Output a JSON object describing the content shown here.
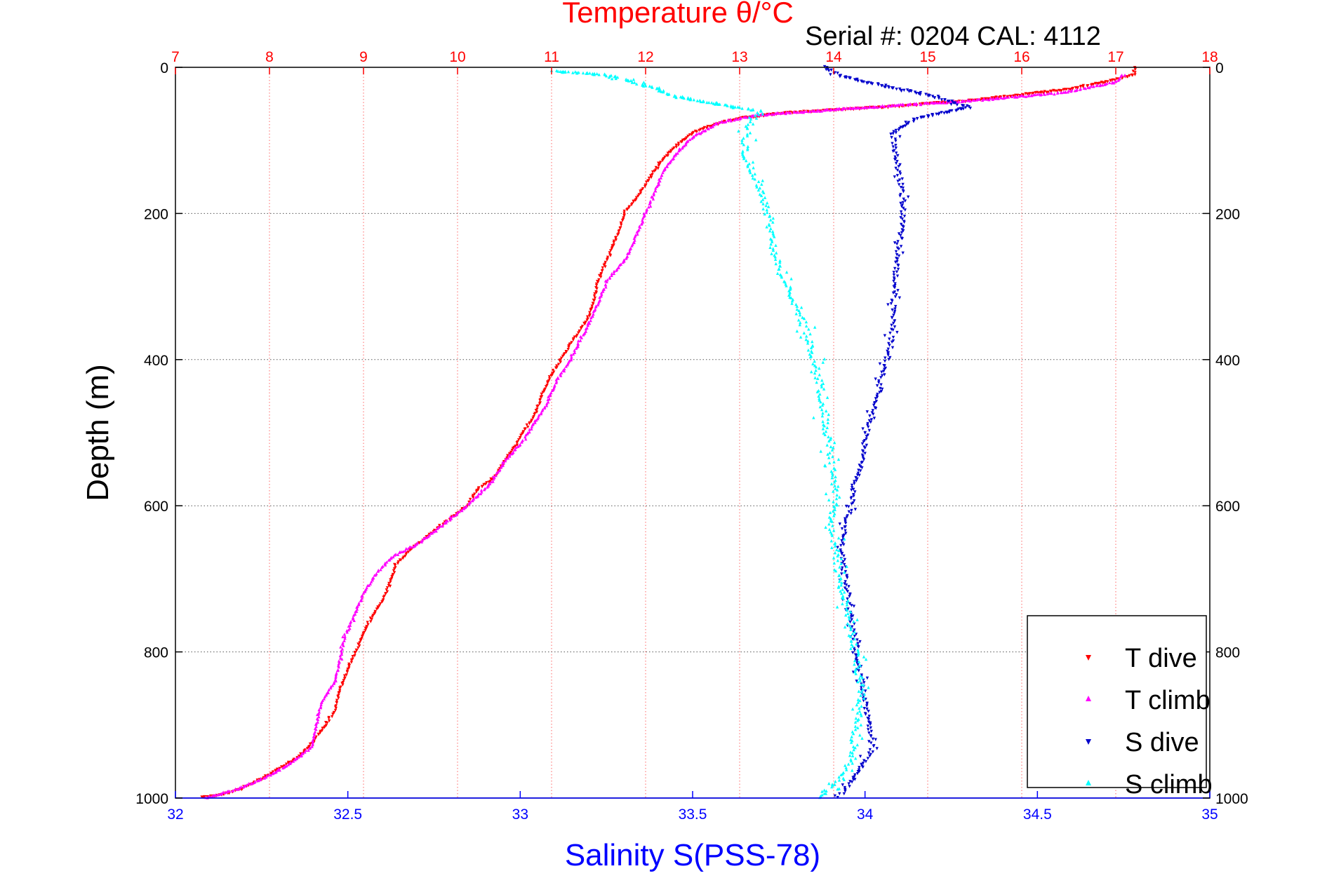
{
  "chart_data": {
    "type": "scatter",
    "title": "Temperature θ/°C",
    "subtitle": "Serial #: 0204  CAL: 4112",
    "ylabel": "Depth (m)",
    "xlabel_bottom": "Salinity S(PSS-78)",
    "y_axis": {
      "range": [
        0,
        1000
      ],
      "inverted": true,
      "ticks": [
        0,
        200,
        400,
        600,
        800,
        1000
      ],
      "labels": [
        "0",
        "200",
        "400",
        "600",
        "800",
        "1000"
      ]
    },
    "x_top_axis": {
      "quantity": "Temperature",
      "range": [
        7,
        18
      ],
      "ticks": [
        7,
        8,
        9,
        10,
        11,
        12,
        13,
        14,
        15,
        16,
        17,
        18
      ],
      "labels": [
        "7",
        "8",
        "9",
        "10",
        "11",
        "12",
        "13",
        "14",
        "15",
        "16",
        "17",
        "18"
      ],
      "color": "#ff0000"
    },
    "x_bottom_axis": {
      "quantity": "Salinity",
      "range": [
        32,
        35
      ],
      "ticks": [
        32,
        32.5,
        33,
        33.5,
        34,
        34.5,
        35
      ],
      "labels": [
        "32",
        "32.5",
        "33",
        "33.5",
        "34",
        "34.5",
        "35"
      ],
      "color": "#0000ff"
    },
    "grid": true,
    "legend": {
      "position": "bottom-right",
      "entries": [
        {
          "label": "T dive",
          "color": "#ff0000"
        },
        {
          "label": "T climb",
          "color": "#ff00ff"
        },
        {
          "label": "S dive",
          "color": "#0000cc"
        },
        {
          "label": "S climb",
          "color": "#00ffff"
        }
      ]
    },
    "series": [
      {
        "name": "T dive",
        "axis": "temperature",
        "color": "#ff0000",
        "points": [
          [
            17.2,
            0
          ],
          [
            17.2,
            10
          ],
          [
            16.9,
            20
          ],
          [
            16.5,
            30
          ],
          [
            15.5,
            45
          ],
          [
            14.5,
            55
          ],
          [
            13.5,
            62
          ],
          [
            13.0,
            70
          ],
          [
            12.7,
            80
          ],
          [
            12.5,
            90
          ],
          [
            12.3,
            110
          ],
          [
            12.2,
            125
          ],
          [
            12.1,
            140
          ],
          [
            12.0,
            160
          ],
          [
            11.9,
            180
          ],
          [
            11.8,
            195
          ],
          [
            11.75,
            210
          ],
          [
            11.7,
            230
          ],
          [
            11.6,
            260
          ],
          [
            11.5,
            290
          ],
          [
            11.45,
            320
          ],
          [
            11.4,
            340
          ],
          [
            11.3,
            360
          ],
          [
            11.2,
            380
          ],
          [
            11.1,
            400
          ],
          [
            11.0,
            420
          ],
          [
            10.9,
            450
          ],
          [
            10.8,
            480
          ],
          [
            10.7,
            500
          ],
          [
            10.6,
            520
          ],
          [
            10.5,
            540
          ],
          [
            10.4,
            560
          ],
          [
            10.2,
            580
          ],
          [
            10.1,
            600
          ],
          [
            9.9,
            620
          ],
          [
            9.7,
            640
          ],
          [
            9.5,
            660
          ],
          [
            9.35,
            680
          ],
          [
            9.3,
            700
          ],
          [
            9.2,
            730
          ],
          [
            9.05,
            760
          ],
          [
            8.95,
            790
          ],
          [
            8.85,
            820
          ],
          [
            8.75,
            850
          ],
          [
            8.7,
            880
          ],
          [
            8.6,
            900
          ],
          [
            8.45,
            925
          ],
          [
            8.3,
            945
          ],
          [
            8.1,
            960
          ],
          [
            7.9,
            975
          ],
          [
            7.7,
            988
          ],
          [
            7.5,
            995
          ],
          [
            7.25,
            1000
          ]
        ]
      },
      {
        "name": "T climb",
        "axis": "temperature",
        "color": "#ff00ff",
        "points": [
          [
            17.1,
            10
          ],
          [
            17.0,
            20
          ],
          [
            16.4,
            35
          ],
          [
            15.5,
            45
          ],
          [
            14.3,
            55
          ],
          [
            13.2,
            65
          ],
          [
            12.8,
            75
          ],
          [
            12.5,
            95
          ],
          [
            12.35,
            115
          ],
          [
            12.2,
            140
          ],
          [
            12.1,
            170
          ],
          [
            12.0,
            200
          ],
          [
            11.9,
            230
          ],
          [
            11.8,
            260
          ],
          [
            11.6,
            290
          ],
          [
            11.5,
            320
          ],
          [
            11.4,
            350
          ],
          [
            11.3,
            375
          ],
          [
            11.2,
            400
          ],
          [
            11.05,
            430
          ],
          [
            10.95,
            460
          ],
          [
            10.8,
            490
          ],
          [
            10.7,
            510
          ],
          [
            10.5,
            540
          ],
          [
            10.35,
            570
          ],
          [
            10.1,
            600
          ],
          [
            9.8,
            630
          ],
          [
            9.6,
            650
          ],
          [
            9.3,
            670
          ],
          [
            9.15,
            690
          ],
          [
            9.0,
            720
          ],
          [
            8.9,
            750
          ],
          [
            8.8,
            780
          ],
          [
            8.75,
            810
          ],
          [
            8.7,
            840
          ],
          [
            8.55,
            870
          ],
          [
            8.5,
            900
          ],
          [
            8.45,
            930
          ],
          [
            8.2,
            955
          ],
          [
            7.9,
            975
          ],
          [
            7.6,
            990
          ],
          [
            7.3,
            1000
          ]
        ]
      },
      {
        "name": "S dive",
        "axis": "salinity",
        "color": "#0000cc",
        "points": [
          [
            33.88,
            0
          ],
          [
            33.92,
            10
          ],
          [
            33.98,
            18
          ],
          [
            34.05,
            25
          ],
          [
            34.2,
            40
          ],
          [
            34.3,
            55
          ],
          [
            34.15,
            70
          ],
          [
            34.08,
            90
          ],
          [
            34.09,
            120
          ],
          [
            34.1,
            150
          ],
          [
            34.11,
            180
          ],
          [
            34.11,
            210
          ],
          [
            34.1,
            240
          ],
          [
            34.09,
            270
          ],
          [
            34.09,
            300
          ],
          [
            34.08,
            330
          ],
          [
            34.08,
            360
          ],
          [
            34.07,
            390
          ],
          [
            34.05,
            420
          ],
          [
            34.04,
            450
          ],
          [
            34.02,
            480
          ],
          [
            34.0,
            510
          ],
          [
            33.99,
            540
          ],
          [
            33.97,
            570
          ],
          [
            33.96,
            600
          ],
          [
            33.94,
            630
          ],
          [
            33.93,
            660
          ],
          [
            33.94,
            690
          ],
          [
            33.95,
            720
          ],
          [
            33.96,
            750
          ],
          [
            33.97,
            780
          ],
          [
            33.98,
            810
          ],
          [
            33.99,
            840
          ],
          [
            34.0,
            870
          ],
          [
            34.01,
            900
          ],
          [
            34.02,
            930
          ],
          [
            34.0,
            950
          ],
          [
            33.97,
            970
          ],
          [
            33.94,
            990
          ],
          [
            33.92,
            1000
          ]
        ]
      },
      {
        "name": "S climb",
        "axis": "salinity",
        "color": "#00ffff",
        "points": [
          [
            33.1,
            5
          ],
          [
            33.25,
            10
          ],
          [
            33.33,
            20
          ],
          [
            33.4,
            30
          ],
          [
            33.45,
            40
          ],
          [
            33.7,
            60
          ],
          [
            33.66,
            80
          ],
          [
            33.65,
            110
          ],
          [
            33.67,
            140
          ],
          [
            33.7,
            170
          ],
          [
            33.72,
            200
          ],
          [
            33.73,
            230
          ],
          [
            33.74,
            260
          ],
          [
            33.76,
            290
          ],
          [
            33.8,
            320
          ],
          [
            33.82,
            350
          ],
          [
            33.84,
            380
          ],
          [
            33.86,
            410
          ],
          [
            33.87,
            440
          ],
          [
            33.88,
            470
          ],
          [
            33.89,
            500
          ],
          [
            33.9,
            530
          ],
          [
            33.91,
            560
          ],
          [
            33.92,
            590
          ],
          [
            33.9,
            620
          ],
          [
            33.91,
            650
          ],
          [
            33.92,
            680
          ],
          [
            33.93,
            710
          ],
          [
            33.95,
            740
          ],
          [
            33.96,
            770
          ],
          [
            33.97,
            800
          ],
          [
            33.98,
            830
          ],
          [
            33.99,
            860
          ],
          [
            33.98,
            890
          ],
          [
            33.97,
            920
          ],
          [
            33.96,
            950
          ],
          [
            33.93,
            975
          ],
          [
            33.86,
            1000
          ]
        ]
      }
    ]
  }
}
